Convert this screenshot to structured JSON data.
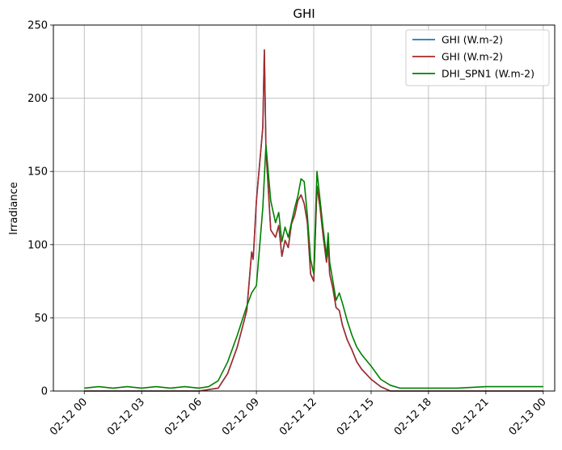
{
  "chart_data": {
    "type": "line",
    "title": "GHI",
    "xlabel": "",
    "ylabel": "Irradiance",
    "x_tick_labels": [
      "02-12 00",
      "02-12 03",
      "02-12 06",
      "02-12 09",
      "02-12 12",
      "02-12 15",
      "02-12 18",
      "02-12 21",
      "02-13 00"
    ],
    "y_ticks": [
      0,
      50,
      100,
      150,
      200,
      250
    ],
    "xlim": [
      "02-11 22:23",
      "02-13 00:36"
    ],
    "ylim": [
      0,
      250
    ],
    "grid": true,
    "legend_position": "top-right",
    "series": [
      {
        "name": "GHI (W.m-2)",
        "color": "#1f77b4",
        "x": [
          "02-12 00:00",
          "02-12 06:00",
          "02-12 07:00",
          "02-12 07:30",
          "02-12 08:00",
          "02-12 08:30",
          "02-12 08:45",
          "02-12 08:50",
          "02-12 09:00",
          "02-12 09:20",
          "02-12 09:25",
          "02-12 09:30",
          "02-12 09:45",
          "02-12 10:00",
          "02-12 10:10",
          "02-12 10:20",
          "02-12 10:30",
          "02-12 10:40",
          "02-12 10:50",
          "02-12 11:00",
          "02-12 11:10",
          "02-12 11:20",
          "02-12 11:30",
          "02-12 11:40",
          "02-12 11:50",
          "02-12 12:00",
          "02-12 12:10",
          "02-12 12:20",
          "02-12 12:30",
          "02-12 12:40",
          "02-12 12:45",
          "02-12 12:50",
          "02-12 13:00",
          "02-12 13:10",
          "02-12 13:20",
          "02-12 13:30",
          "02-12 13:45",
          "02-12 14:00",
          "02-12 14:15",
          "02-12 14:30",
          "02-12 15:00",
          "02-12 15:30",
          "02-12 16:00",
          "02-12 16:30",
          "02-12 17:00",
          "02-12 18:00",
          "02-12 21:00",
          "02-13 00:00"
        ],
        "values": [
          0,
          0,
          2,
          12,
          30,
          55,
          95,
          90,
          130,
          180,
          233,
          165,
          110,
          105,
          113,
          92,
          103,
          98,
          114,
          120,
          130,
          134,
          128,
          115,
          80,
          75,
          140,
          125,
          105,
          88,
          100,
          80,
          70,
          57,
          55,
          45,
          35,
          28,
          20,
          15,
          8,
          3,
          0,
          0,
          0,
          0,
          0,
          0
        ]
      },
      {
        "name": "GHI (W.m-2)",
        "color": "#a52a2a",
        "x": [
          "02-12 00:00",
          "02-12 06:00",
          "02-12 07:00",
          "02-12 07:30",
          "02-12 08:00",
          "02-12 08:30",
          "02-12 08:45",
          "02-12 08:50",
          "02-12 09:00",
          "02-12 09:20",
          "02-12 09:25",
          "02-12 09:30",
          "02-12 09:45",
          "02-12 10:00",
          "02-12 10:10",
          "02-12 10:20",
          "02-12 10:30",
          "02-12 10:40",
          "02-12 10:50",
          "02-12 11:00",
          "02-12 11:10",
          "02-12 11:20",
          "02-12 11:30",
          "02-12 11:40",
          "02-12 11:50",
          "02-12 12:00",
          "02-12 12:10",
          "02-12 12:20",
          "02-12 12:30",
          "02-12 12:40",
          "02-12 12:45",
          "02-12 12:50",
          "02-12 13:00",
          "02-12 13:10",
          "02-12 13:20",
          "02-12 13:30",
          "02-12 13:45",
          "02-12 14:00",
          "02-12 14:15",
          "02-12 14:30",
          "02-12 15:00",
          "02-12 15:30",
          "02-12 16:00",
          "02-12 16:30",
          "02-12 17:00",
          "02-12 18:00",
          "02-12 21:00",
          "02-13 00:00"
        ],
        "values": [
          0,
          0,
          2,
          12,
          30,
          55,
          95,
          90,
          130,
          180,
          233,
          165,
          110,
          105,
          113,
          92,
          103,
          98,
          114,
          120,
          130,
          134,
          128,
          115,
          80,
          75,
          140,
          125,
          105,
          88,
          100,
          80,
          70,
          57,
          55,
          45,
          35,
          28,
          20,
          15,
          8,
          3,
          0,
          0,
          0,
          0,
          0,
          0
        ]
      },
      {
        "name": "DHI_SPN1 (W.m-2)",
        "color": "#008000",
        "x": [
          "02-12 00:00",
          "02-12 00:45",
          "02-12 01:30",
          "02-12 02:15",
          "02-12 03:00",
          "02-12 03:45",
          "02-12 04:30",
          "02-12 05:15",
          "02-12 06:00",
          "02-12 06:30",
          "02-12 07:00",
          "02-12 07:30",
          "02-12 08:00",
          "02-12 08:30",
          "02-12 08:45",
          "02-12 09:00",
          "02-12 09:20",
          "02-12 09:30",
          "02-12 09:45",
          "02-12 10:00",
          "02-12 10:10",
          "02-12 10:20",
          "02-12 10:30",
          "02-12 10:40",
          "02-12 10:50",
          "02-12 11:00",
          "02-12 11:10",
          "02-12 11:20",
          "02-12 11:30",
          "02-12 11:40",
          "02-12 11:50",
          "02-12 12:00",
          "02-12 12:10",
          "02-12 12:20",
          "02-12 12:30",
          "02-12 12:40",
          "02-12 12:45",
          "02-12 12:50",
          "02-12 13:00",
          "02-12 13:10",
          "02-12 13:20",
          "02-12 13:30",
          "02-12 13:45",
          "02-12 14:00",
          "02-12 14:15",
          "02-12 14:30",
          "02-12 15:00",
          "02-12 15:30",
          "02-12 16:00",
          "02-12 16:30",
          "02-12 17:00",
          "02-12 18:00",
          "02-12 19:30",
          "02-12 21:00",
          "02-12 22:30",
          "02-13 00:00"
        ],
        "values": [
          2,
          3,
          2,
          3,
          2,
          3,
          2,
          3,
          2,
          3,
          7,
          20,
          38,
          58,
          67,
          72,
          125,
          168,
          130,
          115,
          122,
          102,
          112,
          105,
          115,
          125,
          133,
          145,
          143,
          120,
          90,
          80,
          150,
          130,
          110,
          92,
          108,
          88,
          75,
          62,
          67,
          60,
          48,
          38,
          30,
          25,
          17,
          8,
          4,
          2,
          2,
          2,
          2,
          3,
          3,
          3
        ]
      }
    ]
  }
}
